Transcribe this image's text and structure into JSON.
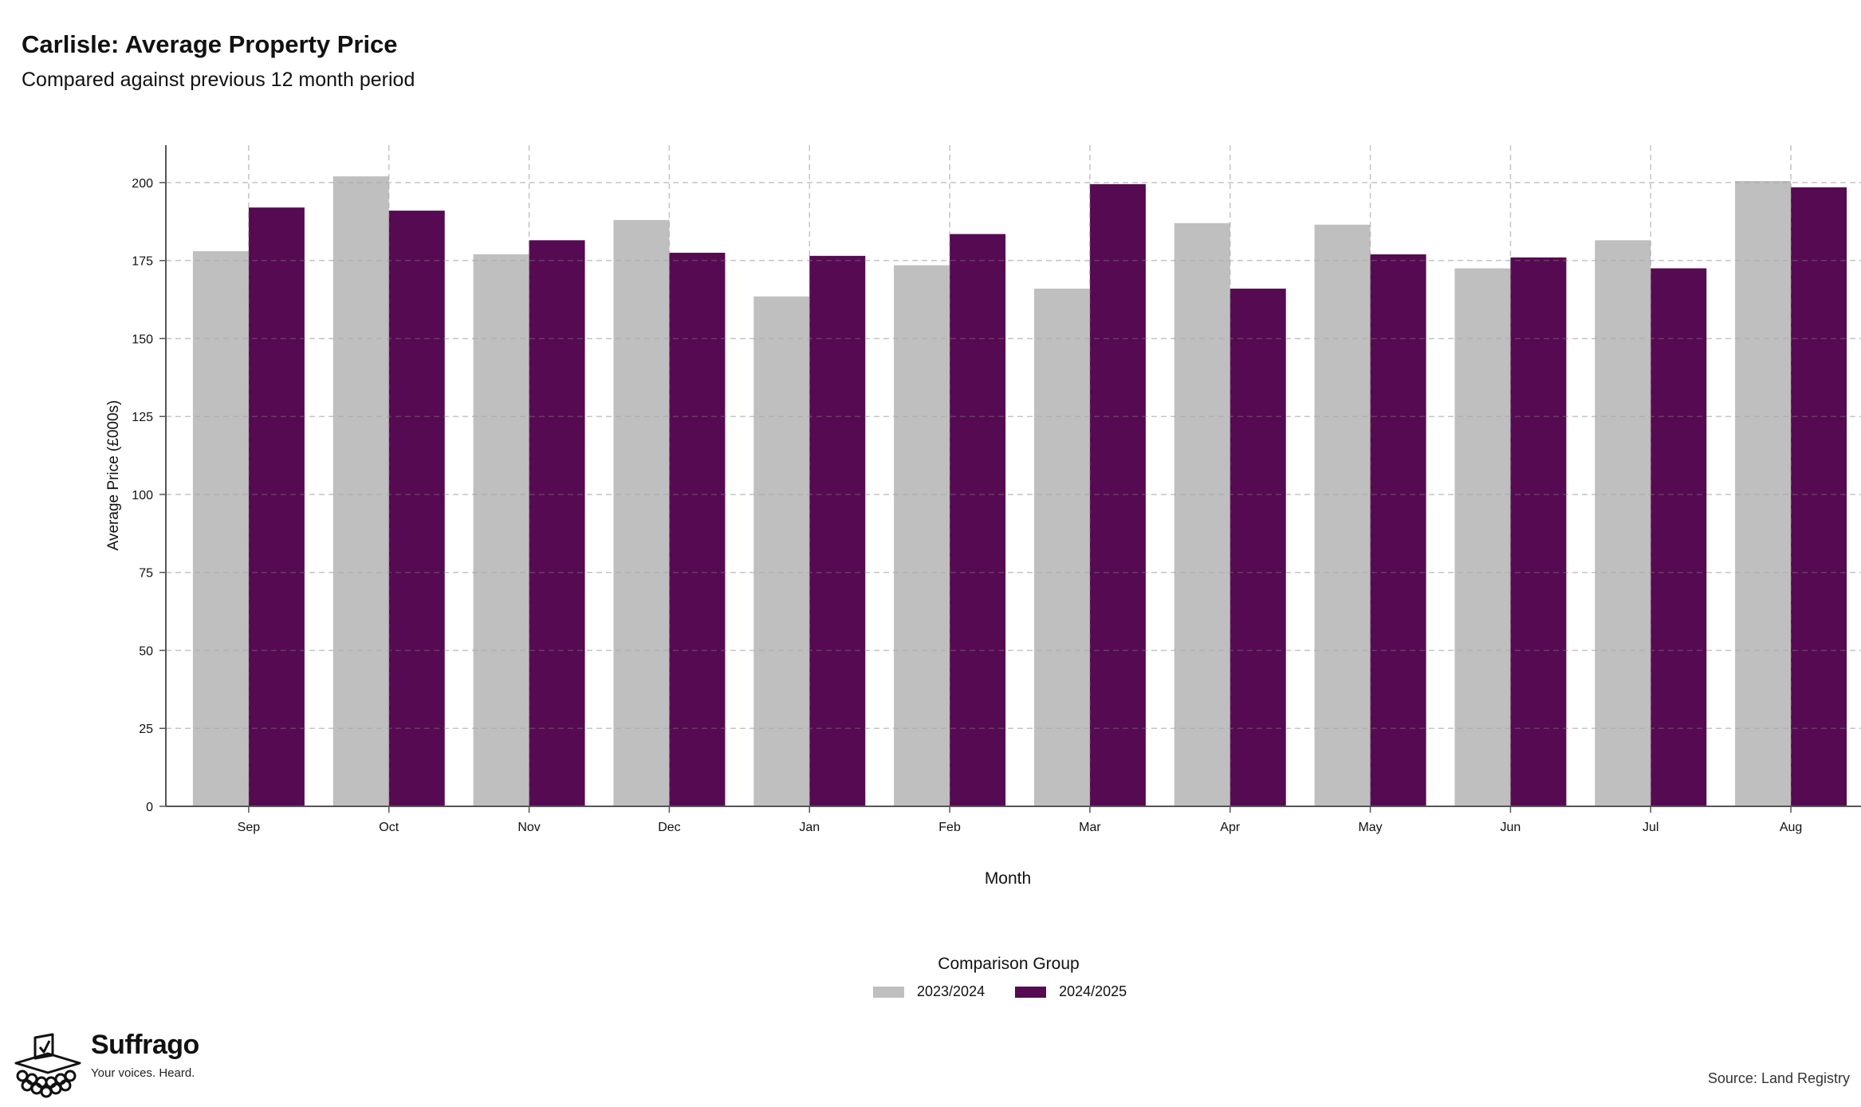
{
  "header": {
    "title": "Carlisle: Average Property Price",
    "subtitle": "Compared against previous 12 month period"
  },
  "colors": {
    "series_2023_2024": "#bfbfbf",
    "series_2024_2025": "#550a51",
    "grid": "#dddddd",
    "axis": "#555555"
  },
  "chart_data": {
    "type": "bar",
    "title": "Carlisle: Average Property Price",
    "subtitle": "Compared against previous 12 month period",
    "xlabel": "Month",
    "ylabel": "Average Price (£000s)",
    "categories": [
      "Sep",
      "Oct",
      "Nov",
      "Dec",
      "Jan",
      "Feb",
      "Mar",
      "Apr",
      "May",
      "Jun",
      "Jul",
      "Aug"
    ],
    "series": [
      {
        "name": "2023/2024",
        "values": [
          178,
          202,
          177,
          188,
          163.5,
          173.5,
          166,
          187,
          186.5,
          172.5,
          181.5,
          200.5
        ]
      },
      {
        "name": "2024/2025",
        "values": [
          192,
          191,
          181.5,
          177.5,
          176.5,
          183.5,
          199.5,
          166,
          177,
          176,
          172.5,
          198.5
        ]
      }
    ],
    "ylim": [
      0,
      212
    ],
    "yticks": [
      0,
      25,
      50,
      75,
      100,
      125,
      150,
      175,
      200
    ],
    "grid": true,
    "legend": {
      "title": "Comparison Group",
      "placement": "bottom"
    }
  },
  "branding": {
    "name": "Suffrago",
    "tagline": "Your voices. Heard.",
    "icon": "ballot-box-icon"
  },
  "footer": {
    "source": "Source: Land Registry"
  }
}
